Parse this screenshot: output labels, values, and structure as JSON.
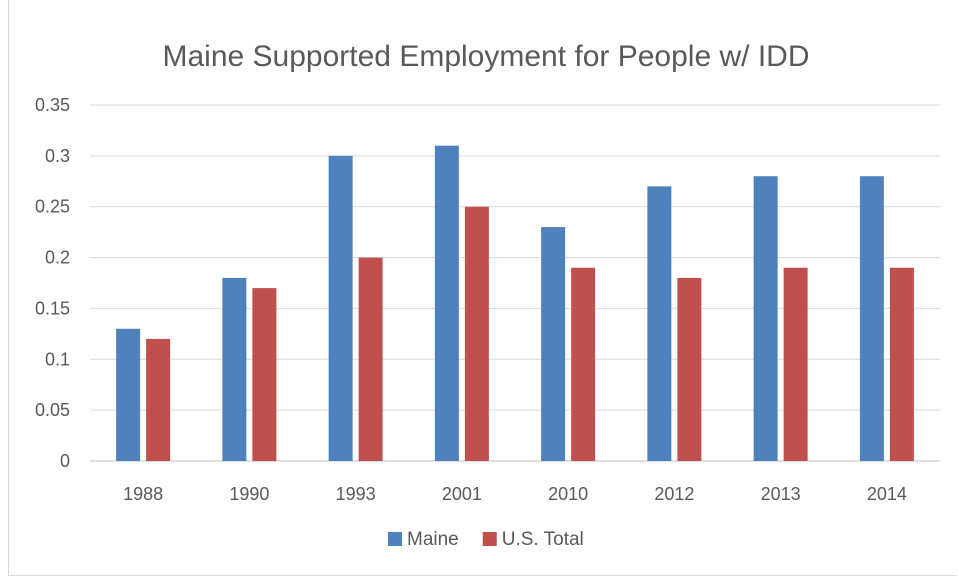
{
  "chart_data": {
    "type": "bar",
    "title": "Maine Supported Employment for People w/ IDD",
    "xlabel": "",
    "ylabel": "",
    "categories": [
      "1988",
      "1990",
      "1993",
      "2001",
      "2010",
      "2012",
      "2013",
      "2014"
    ],
    "series": [
      {
        "name": "Maine",
        "color": "#4f81bd",
        "values": [
          0.13,
          0.18,
          0.3,
          0.31,
          0.23,
          0.27,
          0.28,
          0.28
        ]
      },
      {
        "name": "U.S. Total",
        "color": "#c0504d",
        "values": [
          0.12,
          0.17,
          0.2,
          0.25,
          0.19,
          0.18,
          0.19,
          0.19
        ]
      }
    ],
    "ylim": [
      0,
      0.35
    ],
    "yticks": [
      "0",
      "0.05",
      "0.1",
      "0.15",
      "0.2",
      "0.25",
      "0.3",
      "0.35"
    ],
    "grid": true,
    "legend_position": "bottom"
  }
}
